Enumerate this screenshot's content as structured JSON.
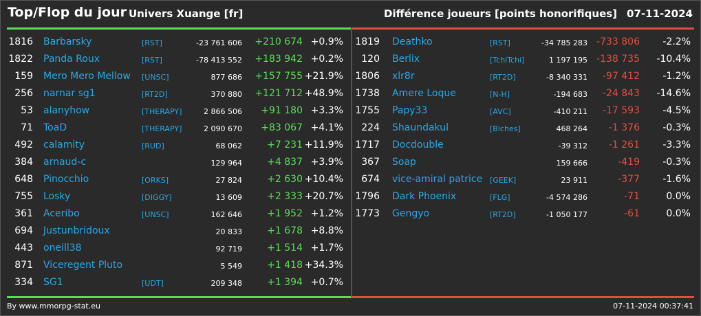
{
  "header": {
    "title": "Top/Flop du jour",
    "universe": "Univers Xuange [fr]",
    "metric": "Différence joueurs [points honorifiques]",
    "date": "07-11-2024"
  },
  "colors": {
    "gain": "#5cdd5a",
    "loss": "#e05040",
    "link": "#29a8e6",
    "background": "#2a2a2a"
  },
  "top": [
    {
      "rank": "1816",
      "name": "Barbarsky",
      "guild": "[RST]",
      "total": "-23 761 606",
      "diff": "+210 674",
      "pct": "+0.9%"
    },
    {
      "rank": "1822",
      "name": "Panda Roux",
      "guild": "[RST]",
      "total": "-78 413 552",
      "diff": "+183 942",
      "pct": "+0.2%"
    },
    {
      "rank": "159",
      "name": "Mero Mero Mellow",
      "guild": "[UNSC]",
      "total": "877 686",
      "diff": "+157 755",
      "pct": "+21.9%"
    },
    {
      "rank": "256",
      "name": "narnar sg1",
      "guild": "[RT2D]",
      "total": "370 880",
      "diff": "+121 712",
      "pct": "+48.9%"
    },
    {
      "rank": "53",
      "name": "alanyhow",
      "guild": "[THERAPY]",
      "total": "2 866 506",
      "diff": "+91 180",
      "pct": "+3.3%"
    },
    {
      "rank": "71",
      "name": "ToaD",
      "guild": "[THERAPY]",
      "total": "2 090 670",
      "diff": "+83 067",
      "pct": "+4.1%"
    },
    {
      "rank": "492",
      "name": "calamity",
      "guild": "[RUD]",
      "total": "68 062",
      "diff": "+7 231",
      "pct": "+11.9%"
    },
    {
      "rank": "384",
      "name": "arnaud-c",
      "guild": "",
      "total": "129 964",
      "diff": "+4 837",
      "pct": "+3.9%"
    },
    {
      "rank": "648",
      "name": "Pinocchio",
      "guild": "[ORKS]",
      "total": "27 824",
      "diff": "+2 630",
      "pct": "+10.4%"
    },
    {
      "rank": "755",
      "name": "Losky",
      "guild": "[DIGGY]",
      "total": "13 609",
      "diff": "+2 333",
      "pct": "+20.7%"
    },
    {
      "rank": "361",
      "name": "Aceribo",
      "guild": "[UNSC]",
      "total": "162 646",
      "diff": "+1 952",
      "pct": "+1.2%"
    },
    {
      "rank": "694",
      "name": "Justunbridoux",
      "guild": "",
      "total": "20 833",
      "diff": "+1 678",
      "pct": "+8.8%"
    },
    {
      "rank": "443",
      "name": "oneill38",
      "guild": "",
      "total": "92 719",
      "diff": "+1 514",
      "pct": "+1.7%"
    },
    {
      "rank": "871",
      "name": "Viceregent Pluto",
      "guild": "",
      "total": "5 549",
      "diff": "+1 418",
      "pct": "+34.3%"
    },
    {
      "rank": "334",
      "name": "SG1",
      "guild": "[UDT]",
      "total": "209 348",
      "diff": "+1 394",
      "pct": "+0.7%"
    }
  ],
  "flop": [
    {
      "rank": "1819",
      "name": "Deathko",
      "guild": "[RST]",
      "total": "-34 785 283",
      "diff": "-733 806",
      "pct": "-2.2%"
    },
    {
      "rank": "120",
      "name": "Berlix",
      "guild": "[TchiTchi]",
      "total": "1 197 195",
      "diff": "-138 735",
      "pct": "-10.4%"
    },
    {
      "rank": "1806",
      "name": "xlr8r",
      "guild": "[RT2D]",
      "total": "-8 340 331",
      "diff": "-97 412",
      "pct": "-1.2%"
    },
    {
      "rank": "1738",
      "name": "Amere Loque",
      "guild": "[N-H]",
      "total": "-194 683",
      "diff": "-24 843",
      "pct": "-14.6%"
    },
    {
      "rank": "1755",
      "name": "Papy33",
      "guild": "[AVC]",
      "total": "-410 211",
      "diff": "-17 593",
      "pct": "-4.5%"
    },
    {
      "rank": "224",
      "name": "Shaundakul",
      "guild": "[Biches]",
      "total": "468 264",
      "diff": "-1 376",
      "pct": "-0.3%"
    },
    {
      "rank": "1717",
      "name": "Docdouble",
      "guild": "",
      "total": "-39 312",
      "diff": "-1 261",
      "pct": "-3.3%"
    },
    {
      "rank": "367",
      "name": "Soap",
      "guild": "",
      "total": "159 666",
      "diff": "-419",
      "pct": "-0.3%"
    },
    {
      "rank": "674",
      "name": "vice-amiral patrice",
      "guild": "[GEEK]",
      "total": "23 911",
      "diff": "-377",
      "pct": "-1.6%"
    },
    {
      "rank": "1796",
      "name": "Dark Phoenix",
      "guild": "[FLG]",
      "total": "-4 574 286",
      "diff": "-71",
      "pct": "0.0%"
    },
    {
      "rank": "1773",
      "name": "Gengyo",
      "guild": "[RT2D]",
      "total": "-1 050 177",
      "diff": "-61",
      "pct": "0.0%"
    }
  ],
  "footer": {
    "credit": "By www.mmorpg-stat.eu",
    "timestamp": "07-11-2024 00:37:41"
  }
}
